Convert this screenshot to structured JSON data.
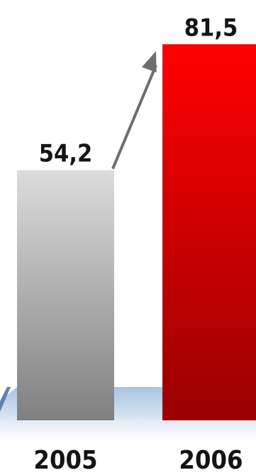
{
  "chart_data": {
    "type": "bar",
    "categories": [
      "2005",
      "2006"
    ],
    "values": [
      54.2,
      81.5
    ],
    "value_labels": [
      "54,2",
      "81,5"
    ],
    "title": "",
    "xlabel": "",
    "ylabel": "",
    "ylim": [
      0,
      90
    ],
    "grid": false,
    "legend": "none",
    "annotations": [
      {
        "type": "growth-arrow",
        "from": "2005",
        "to": "2006"
      }
    ],
    "colors": {
      "bar_2005_top": "#dcdcdc",
      "bar_2005_bottom": "#808080",
      "bar_2006_top": "#ff0000",
      "bar_2006_bottom": "#990000",
      "floor": "#a9c4e2",
      "arrow": "#6e6e6e"
    }
  }
}
